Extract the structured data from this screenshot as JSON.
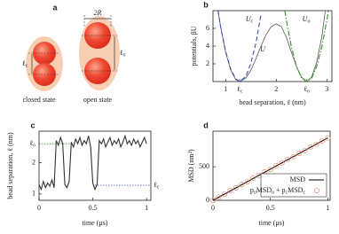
{
  "diagram": {
    "label": "a",
    "bracket": "2R",
    "closed_length": [
      [
        "ℓ",
        "c"
      ]
    ],
    "open_length": [
      [
        "ℓ",
        "o"
      ]
    ],
    "closed_caption": "closed state",
    "open_caption": "open state"
  },
  "chart_data": [
    {
      "type": "line",
      "label": "b",
      "xlabel": "bead separation, ℓ (nm)",
      "ylabel": "potentials, βU",
      "xlim": [
        0.75,
        3.1
      ],
      "xticks": [
        1,
        2,
        3
      ],
      "ylim": [
        0,
        8
      ],
      "yticks": [
        2,
        4,
        6
      ],
      "x_markers": [
        {
          "label": [
            [
              "ℓ",
              "c"
            ]
          ],
          "x": 1.28,
          "color": "#3b4fc0"
        },
        {
          "label": [
            [
              "ℓ",
              "o"
            ]
          ],
          "x": 2.6,
          "color": "#3d8b2f"
        }
      ],
      "series": [
        {
          "name": [
            [
              "U"
            ]
          ],
          "color": "#555555",
          "style": "solid",
          "x": [
            0.85,
            0.9,
            1.0,
            1.1,
            1.2,
            1.28,
            1.4,
            1.5,
            1.6,
            1.7,
            1.8,
            1.9,
            2.0,
            2.1,
            2.2,
            2.3,
            2.4,
            2.5,
            2.6,
            2.7,
            2.8,
            2.9,
            2.97
          ],
          "values": [
            8,
            6.2,
            3.3,
            1.3,
            0.2,
            0,
            0.4,
            1.3,
            2.6,
            4.0,
            5.3,
            6.2,
            6.5,
            6.2,
            5.0,
            3.3,
            1.7,
            0.5,
            0,
            0.5,
            2.2,
            5.0,
            8
          ]
        },
        {
          "name": [
            [
              "U",
              "c"
            ]
          ],
          "color": "#3b4fc0",
          "style": "dashed",
          "x": [
            0.85,
            0.9,
            1.0,
            1.1,
            1.2,
            1.28,
            1.4,
            1.5,
            1.6,
            1.7
          ],
          "values": [
            8.0,
            6.2,
            3.4,
            1.4,
            0.3,
            0,
            0.6,
            2.1,
            4.4,
            7.6
          ]
        },
        {
          "name": [
            [
              "U",
              "o"
            ]
          ],
          "color": "#3d8b2f",
          "style": "dashdot",
          "x": [
            2.17,
            2.2,
            2.3,
            2.4,
            2.5,
            2.6,
            2.7,
            2.8,
            2.9,
            3.0,
            3.03
          ],
          "values": [
            8.0,
            6.9,
            3.9,
            1.7,
            0.4,
            0,
            0.4,
            1.7,
            3.9,
            6.9,
            8.0
          ]
        }
      ]
    },
    {
      "type": "line",
      "label": "c",
      "xlabel": "time (μs)",
      "ylabel": "bead separation, ℓ (nm)",
      "xlim": [
        0,
        1.04
      ],
      "xticks": [
        0,
        0.5,
        1
      ],
      "ylim": [
        0.8,
        3.0
      ],
      "yticks": [
        1,
        2
      ],
      "y_markers": [
        {
          "label": [
            [
              "ℓ",
              "o"
            ]
          ],
          "y": 2.6,
          "color": "#3d8b2f",
          "side": "left"
        },
        {
          "label": [
            [
              "ℓ",
              "c"
            ]
          ],
          "y": 1.28,
          "color": "#3b4fc0",
          "side": "right"
        }
      ],
      "series": [
        {
          "color": "#333333",
          "style": "solid",
          "x": [
            0,
            0.02,
            0.04,
            0.06,
            0.08,
            0.1,
            0.12,
            0.14,
            0.16,
            0.18,
            0.2,
            0.22,
            0.24,
            0.26,
            0.28,
            0.3,
            0.32,
            0.34,
            0.36,
            0.38,
            0.4,
            0.42,
            0.44,
            0.46,
            0.48,
            0.5,
            0.52,
            0.54,
            0.56,
            0.58,
            0.6,
            0.62,
            0.64,
            0.66,
            0.68,
            0.7,
            0.72,
            0.74,
            0.76,
            0.78,
            0.8,
            0.82,
            0.84,
            0.86,
            0.88,
            0.9,
            0.92,
            0.94,
            0.96,
            0.98,
            1.0
          ],
          "values": [
            1.3,
            1.15,
            1.4,
            1.2,
            1.35,
            1.25,
            1.45,
            1.2,
            2.7,
            2.55,
            2.8,
            2.6,
            1.3,
            1.2,
            1.4,
            2.65,
            2.5,
            2.75,
            2.6,
            2.8,
            2.55,
            2.7,
            2.6,
            2.85,
            2.5,
            1.35,
            1.15,
            1.3,
            2.7,
            2.6,
            2.75,
            2.5,
            2.65,
            2.8,
            2.55,
            2.7,
            2.6,
            2.75,
            2.5,
            2.65,
            2.85,
            2.6,
            2.7,
            2.55,
            2.75,
            2.6,
            2.7,
            2.5,
            2.65,
            2.8,
            2.6
          ]
        }
      ]
    },
    {
      "type": "line",
      "label": "d",
      "xlabel": "time (μs)",
      "ylabel": "MSD (nm²)",
      "xlim": [
        0,
        1.02
      ],
      "xticks": [
        0,
        0.5,
        1
      ],
      "ylim": [
        0,
        1030
      ],
      "yticks": [
        0,
        500
      ],
      "legend": "lower right",
      "series": [
        {
          "name": [
            [
              "MSD"
            ]
          ],
          "color": "#000000",
          "style": "solid",
          "x": [
            0,
            1
          ],
          "values": [
            0,
            930
          ]
        },
        {
          "name": [
            [
              "p",
              "o"
            ],
            [
              "MSD",
              "o"
            ],
            [
              " + p",
              "c"
            ],
            [
              "MSD",
              "c"
            ]
          ],
          "color": "#f08a6a",
          "marker": "circle",
          "x": [
            0,
            0.05,
            0.1,
            0.15,
            0.2,
            0.25,
            0.3,
            0.35,
            0.4,
            0.45,
            0.5,
            0.55,
            0.6,
            0.65,
            0.7,
            0.75,
            0.8,
            0.85,
            0.9,
            0.95,
            1.0
          ],
          "values": [
            0,
            48,
            90,
            142,
            185,
            236,
            275,
            330,
            370,
            425,
            462,
            515,
            555,
            610,
            650,
            700,
            742,
            795,
            835,
            885,
            930
          ]
        }
      ]
    }
  ]
}
